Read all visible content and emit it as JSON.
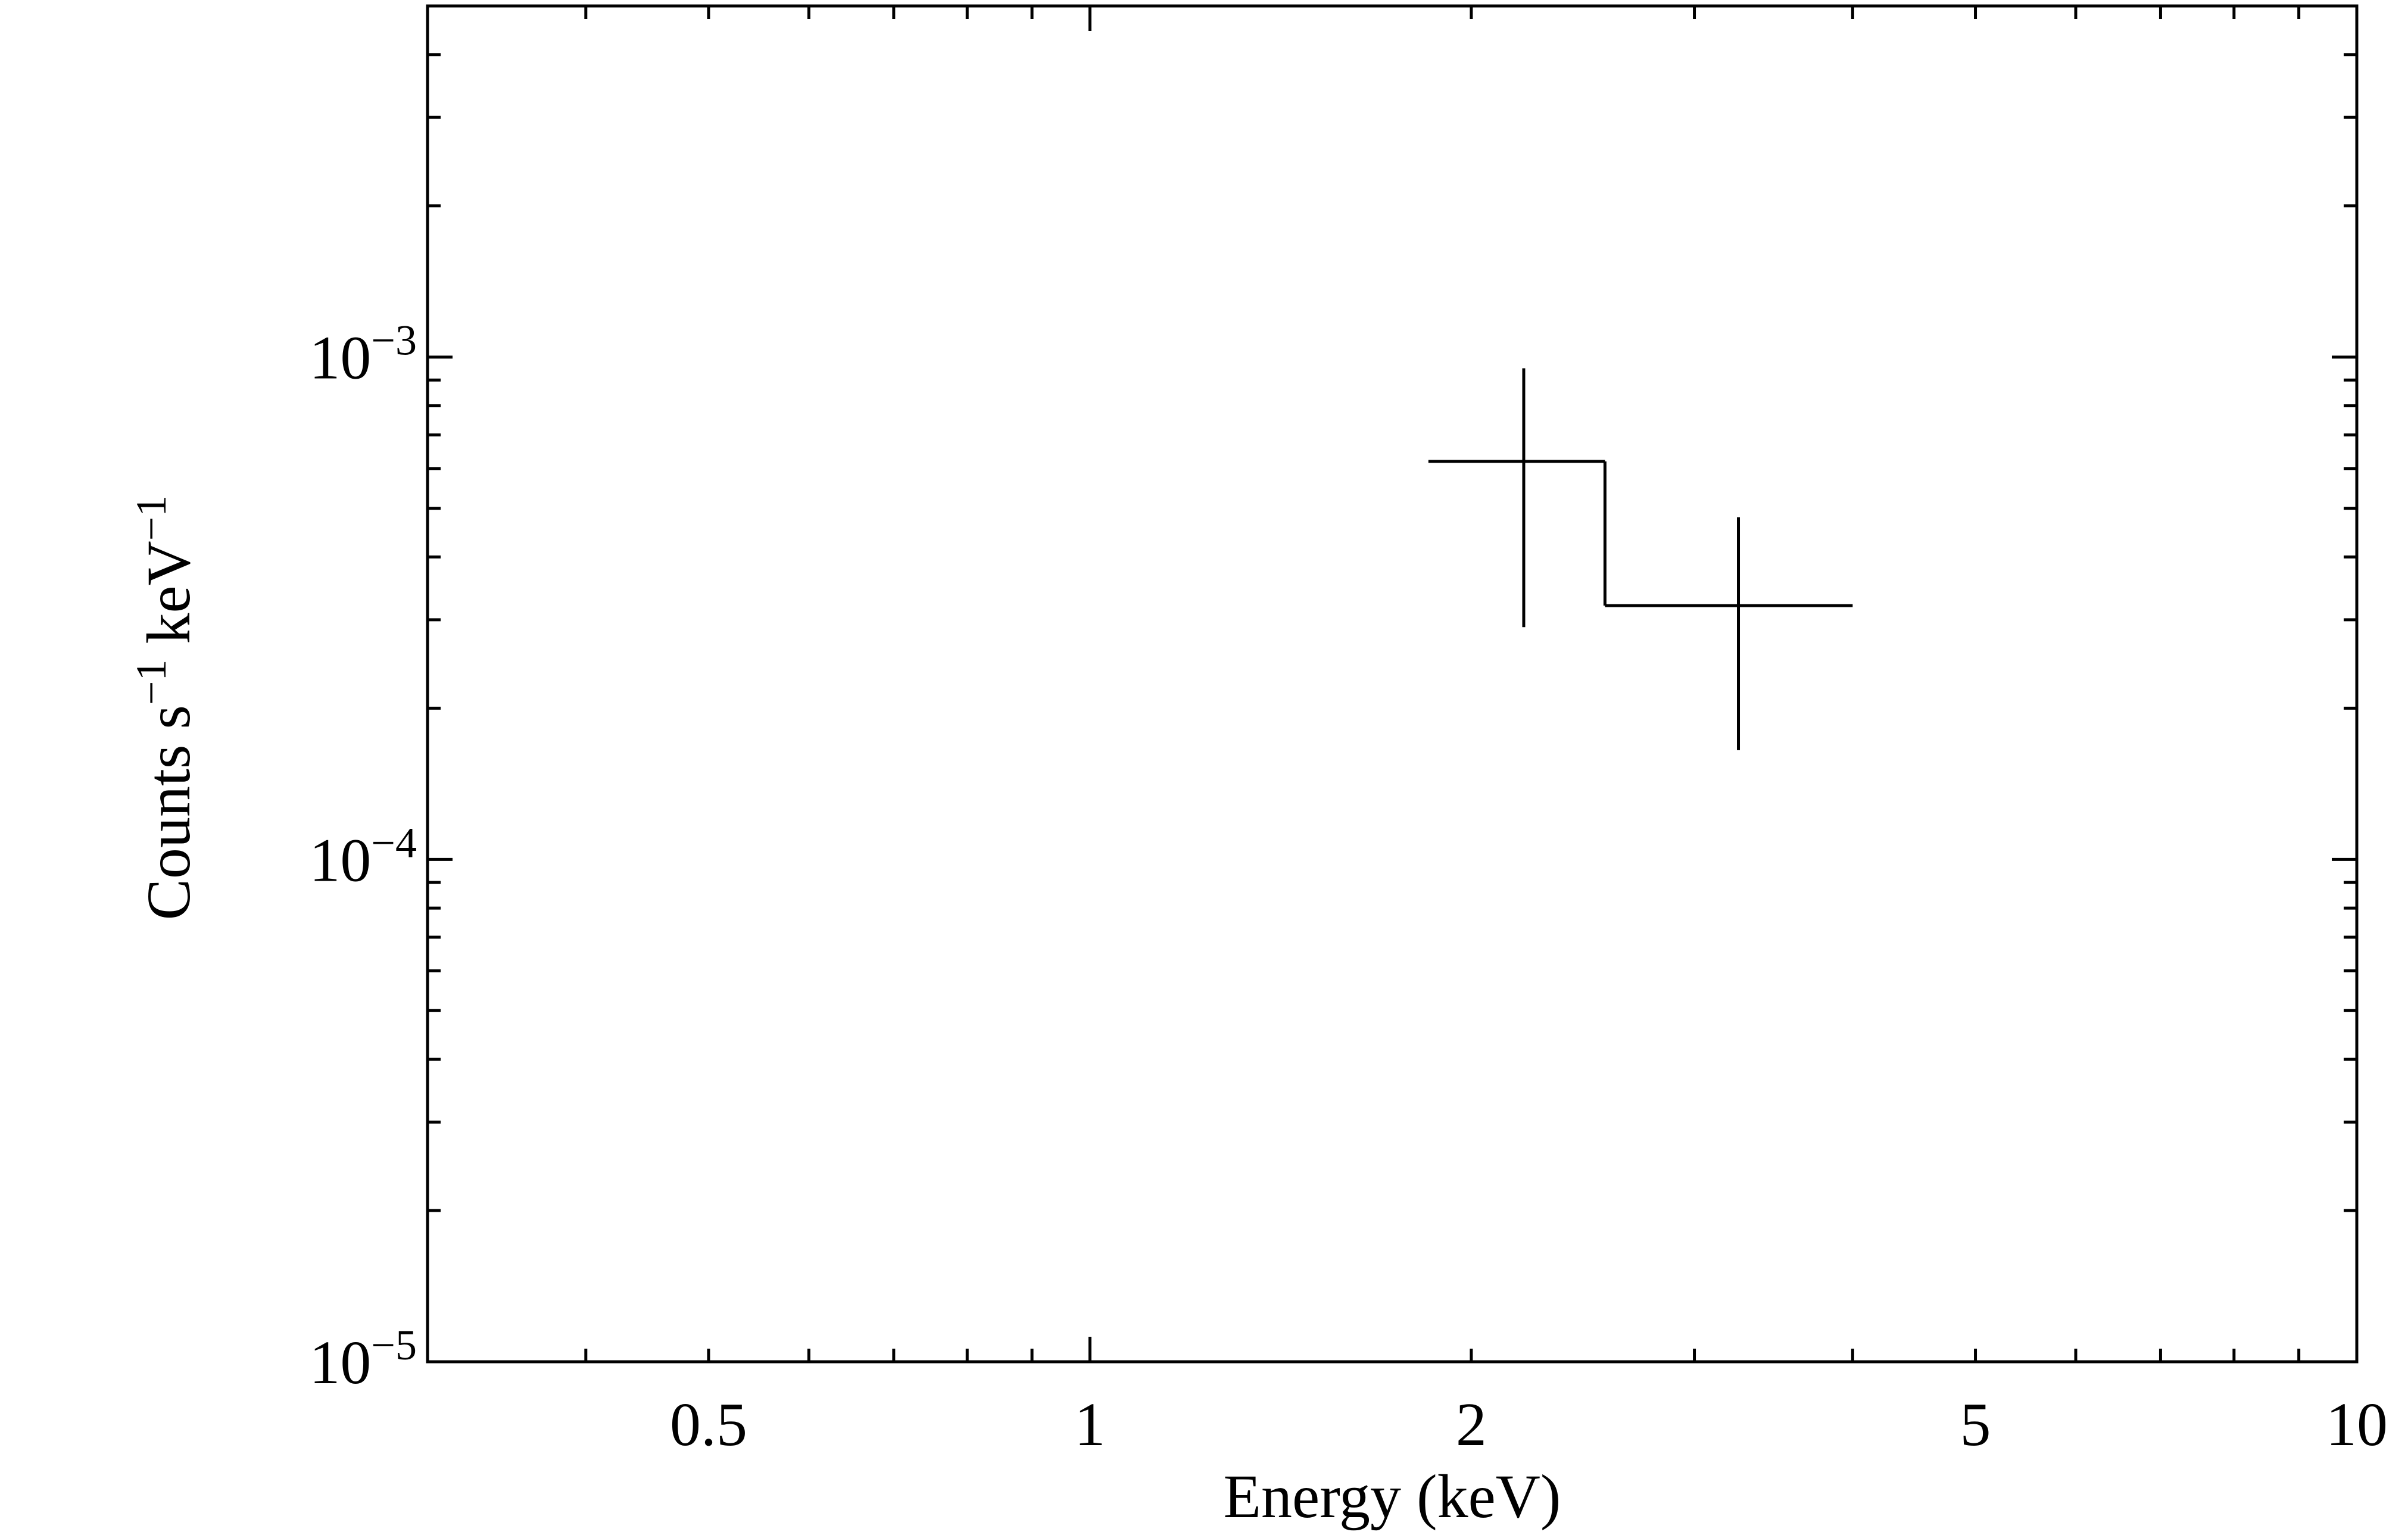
{
  "chart_data": {
    "type": "scatter",
    "xlabel": "Energy (keV)",
    "ylabel": {
      "parts": [
        "Counts s",
        "−1",
        " keV",
        "−1"
      ]
    },
    "xscale": "log",
    "yscale": "log",
    "xlim": [
      0.3,
      10
    ],
    "ylim": [
      1e-05,
      0.005
    ],
    "x_tick_labels": [
      {
        "value": 0.5,
        "label": "0.5"
      },
      {
        "value": 1,
        "label": "1"
      },
      {
        "value": 2,
        "label": "2"
      },
      {
        "value": 5,
        "label": "5"
      },
      {
        "value": 10,
        "label": "10"
      }
    ],
    "y_tick_labels": [
      {
        "value": 1e-05,
        "base": "10",
        "exp": "−5"
      },
      {
        "value": 0.0001,
        "base": "10",
        "exp": "−4"
      },
      {
        "value": 0.001,
        "base": "10",
        "exp": "−3"
      }
    ],
    "grid": false,
    "series": [
      {
        "points": [
          {
            "x": 2.2,
            "xlow": 1.85,
            "xhigh": 2.55,
            "y": 0.00062,
            "ylow": 0.00029,
            "yhigh": 0.00095
          },
          {
            "x": 3.25,
            "xlow": 2.55,
            "xhigh": 4.0,
            "y": 0.00032,
            "ylow": 0.000165,
            "yhigh": 0.00048
          }
        ]
      }
    ]
  }
}
